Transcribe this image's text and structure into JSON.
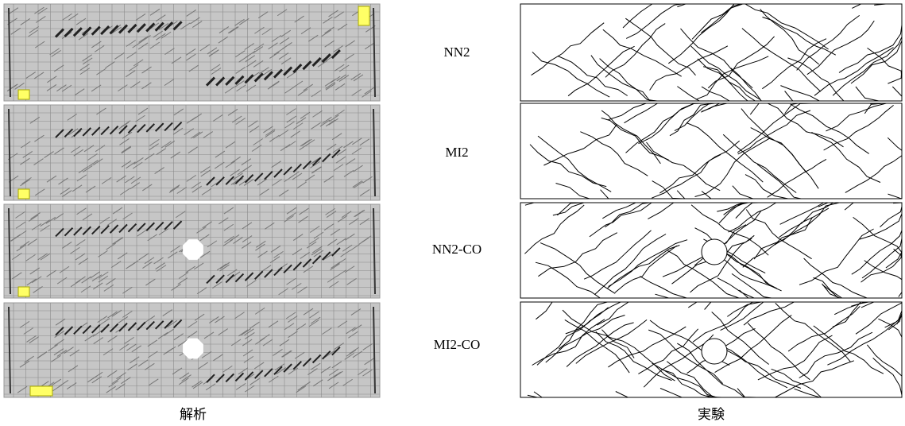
{
  "row_labels": [
    "NN2",
    "MI2",
    "NN2-CO",
    "MI2-CO"
  ],
  "captions": {
    "analysis": "解析",
    "experiment": "実験"
  }
}
